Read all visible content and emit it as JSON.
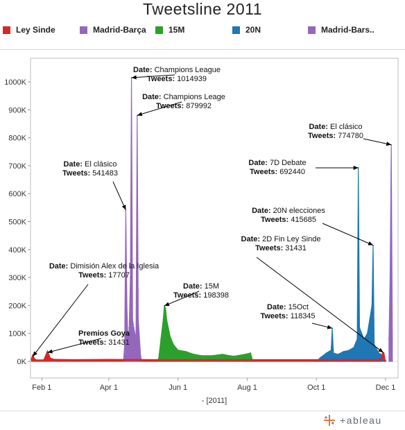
{
  "chart_data": {
    "type": "area",
    "title": "Tweetsline  2011",
    "xlabel": "- [2011]",
    "ylabel": "",
    "ylim": [
      0,
      1050000
    ],
    "xlim": [
      "2011-01-22",
      "2011-12-12"
    ],
    "grid": false,
    "legend_position": "top",
    "x_ticks": [
      {
        "date": "2011-02-01",
        "label": "Feb 1"
      },
      {
        "date": "2011-04-01",
        "label": "Apr 1"
      },
      {
        "date": "2011-06-01",
        "label": "Jun 1"
      },
      {
        "date": "2011-08-01",
        "label": "Aug 1"
      },
      {
        "date": "2011-10-01",
        "label": "Oct 1"
      },
      {
        "date": "2011-12-01",
        "label": "Dec 1"
      }
    ],
    "y_ticks": [
      {
        "value": 0,
        "label": "0K"
      },
      {
        "value": 100000,
        "label": "100K"
      },
      {
        "value": 200000,
        "label": "200K"
      },
      {
        "value": 300000,
        "label": "300K"
      },
      {
        "value": 400000,
        "label": "400K"
      },
      {
        "value": 500000,
        "label": "500K"
      },
      {
        "value": 600000,
        "label": "600K"
      },
      {
        "value": 700000,
        "label": "700K"
      },
      {
        "value": 800000,
        "label": "800K"
      },
      {
        "value": 900000,
        "label": "900K"
      },
      {
        "value": 1000000,
        "label": "1000K"
      }
    ],
    "series": [
      {
        "name": "Ley Sinde",
        "color": "#d62728",
        "points": [
          [
            "2011-01-23",
            5000
          ],
          [
            "2011-01-24",
            17707
          ],
          [
            "2011-01-25",
            8000
          ],
          [
            "2011-01-27",
            3000
          ],
          [
            "2011-02-03",
            3000
          ],
          [
            "2011-02-06",
            31431
          ],
          [
            "2011-02-08",
            10000
          ],
          [
            "2011-02-12",
            5000
          ],
          [
            "2011-03-01",
            4000
          ],
          [
            "2011-04-01",
            5000
          ],
          [
            "2011-05-15",
            4000
          ],
          [
            "2011-06-15",
            4000
          ],
          [
            "2011-07-15",
            4000
          ],
          [
            "2011-08-15",
            4000
          ],
          [
            "2011-09-15",
            4000
          ],
          [
            "2011-10-15",
            4000
          ],
          [
            "2011-11-15",
            4000
          ],
          [
            "2011-11-27",
            5000
          ],
          [
            "2011-11-29",
            31431
          ],
          [
            "2011-11-30",
            5000
          ],
          [
            "2011-12-01",
            3000
          ]
        ]
      },
      {
        "name": "Madrid-Barça",
        "color": "#9467bd",
        "points": [
          [
            "2011-04-14",
            0
          ],
          [
            "2011-04-15",
            60000
          ],
          [
            "2011-04-16",
            541483
          ],
          [
            "2011-04-17",
            200000
          ],
          [
            "2011-04-18",
            60000
          ],
          [
            "2011-04-19",
            120000
          ],
          [
            "2011-04-20",
            300000
          ],
          [
            "2011-04-21",
            1014939
          ],
          [
            "2011-04-22",
            150000
          ],
          [
            "2011-04-23",
            120000
          ],
          [
            "2011-04-25",
            80000
          ],
          [
            "2011-04-26",
            879992
          ],
          [
            "2011-04-27",
            150000
          ],
          [
            "2011-04-29",
            20000
          ],
          [
            "2011-04-30",
            0
          ]
        ]
      },
      {
        "name": "15M",
        "color": "#2ca02c",
        "points": [
          [
            "2011-05-13",
            0
          ],
          [
            "2011-05-15",
            10000
          ],
          [
            "2011-05-17",
            80000
          ],
          [
            "2011-05-19",
            150000
          ],
          [
            "2011-05-20",
            198398
          ],
          [
            "2011-05-21",
            190000
          ],
          [
            "2011-05-22",
            150000
          ],
          [
            "2011-05-25",
            90000
          ],
          [
            "2011-05-28",
            60000
          ],
          [
            "2011-06-01",
            40000
          ],
          [
            "2011-06-08",
            35000
          ],
          [
            "2011-06-15",
            25000
          ],
          [
            "2011-06-22",
            20000
          ],
          [
            "2011-07-01",
            20000
          ],
          [
            "2011-07-10",
            25000
          ],
          [
            "2011-07-20",
            18000
          ],
          [
            "2011-07-30",
            25000
          ],
          [
            "2011-08-04",
            30000
          ],
          [
            "2011-08-06",
            0
          ]
        ]
      },
      {
        "name": "20N",
        "color": "#1f77b4",
        "points": [
          [
            "2011-10-01",
            0
          ],
          [
            "2011-10-05",
            15000
          ],
          [
            "2011-10-10",
            30000
          ],
          [
            "2011-10-14",
            40000
          ],
          [
            "2011-10-15",
            118345
          ],
          [
            "2011-10-16",
            30000
          ],
          [
            "2011-10-20",
            25000
          ],
          [
            "2011-10-25",
            35000
          ],
          [
            "2011-10-30",
            40000
          ],
          [
            "2011-11-03",
            50000
          ],
          [
            "2011-11-06",
            80000
          ],
          [
            "2011-11-07",
            692440
          ],
          [
            "2011-11-08",
            120000
          ],
          [
            "2011-11-12",
            80000
          ],
          [
            "2011-11-15",
            100000
          ],
          [
            "2011-11-19",
            200000
          ],
          [
            "2011-11-20",
            415685
          ],
          [
            "2011-11-21",
            60000
          ],
          [
            "2011-11-25",
            30000
          ],
          [
            "2011-11-29",
            20000
          ],
          [
            "2011-11-30",
            0
          ]
        ]
      },
      {
        "name": "Madrid-Bars..",
        "color": "#9467bd",
        "points": [
          [
            "2011-12-04",
            80000
          ],
          [
            "2011-12-05",
            300000
          ],
          [
            "2011-12-06",
            774780
          ],
          [
            "2011-12-07",
            80000
          ]
        ]
      }
    ],
    "annotations": [
      {
        "date_label": "Date:",
        "date_value": "Dimisión Alex de la Iglesia",
        "tweets_label": "Tweets:",
        "tweets_value": "17707",
        "x": "2011-01-24",
        "y": 17707,
        "anchor": "left"
      },
      {
        "date_label": "",
        "date_value": "Premios Goya",
        "tweets_label": "Tweets:",
        "tweets_value": "31431",
        "x": "2011-02-06",
        "y": 31431,
        "anchor": "left"
      },
      {
        "date_label": "Date:",
        "date_value": "El clásico",
        "tweets_label": "Tweets:",
        "tweets_value": "541483",
        "x": "2011-04-16",
        "y": 541483,
        "anchor": "right"
      },
      {
        "date_label": "Date:",
        "date_value": "Champions League",
        "tweets_label": "Tweets:",
        "tweets_value": "1014939",
        "x": "2011-04-21",
        "y": 1014939,
        "anchor": "left"
      },
      {
        "date_label": "Date:",
        "date_value": "Champions Leage",
        "tweets_label": "Tweets:",
        "tweets_value": "879992",
        "x": "2011-04-26",
        "y": 879992,
        "anchor": "left"
      },
      {
        "date_label": "Date:",
        "date_value": "15M",
        "tweets_label": "Tweets:",
        "tweets_value": "198398",
        "x": "2011-05-20",
        "y": 198398,
        "anchor": "left"
      },
      {
        "date_label": "Date:",
        "date_value": "15Oct",
        "tweets_label": "Tweets:",
        "tweets_value": "118345",
        "x": "2011-10-15",
        "y": 118345,
        "anchor": "right"
      },
      {
        "date_label": "Date:",
        "date_value": "7D Debate",
        "tweets_label": "Tweets:",
        "tweets_value": "692440",
        "x": "2011-11-07",
        "y": 692440,
        "anchor": "right"
      },
      {
        "date_label": "Date:",
        "date_value": "20N elecciones",
        "tweets_label": "Tweets:",
        "tweets_value": "415685",
        "x": "2011-11-20",
        "y": 415685,
        "anchor": "right"
      },
      {
        "date_label": "Date:",
        "date_value": "2D Fin Ley Sinde",
        "tweets_label": "Tweets:",
        "tweets_value": "31431",
        "x": "2011-11-29",
        "y": 31431,
        "anchor": "right"
      },
      {
        "date_label": "Date:",
        "date_value": "El clásico",
        "tweets_label": "Tweets:",
        "tweets_value": "774780",
        "x": "2011-12-06",
        "y": 774780,
        "anchor": "right"
      }
    ]
  },
  "legend": [
    {
      "label": "Ley Sinde",
      "color": "#d62728"
    },
    {
      "label": "Madrid-Barça",
      "color": "#9467bd"
    },
    {
      "label": "15M",
      "color": "#2ca02c"
    },
    {
      "label": "20N",
      "color": "#1f77b4"
    },
    {
      "label": "Madrid-Bars..",
      "color": "#9467bd"
    }
  ],
  "brand": {
    "name": "+ableau",
    "logo_icon": "tableau-plus-icon"
  }
}
